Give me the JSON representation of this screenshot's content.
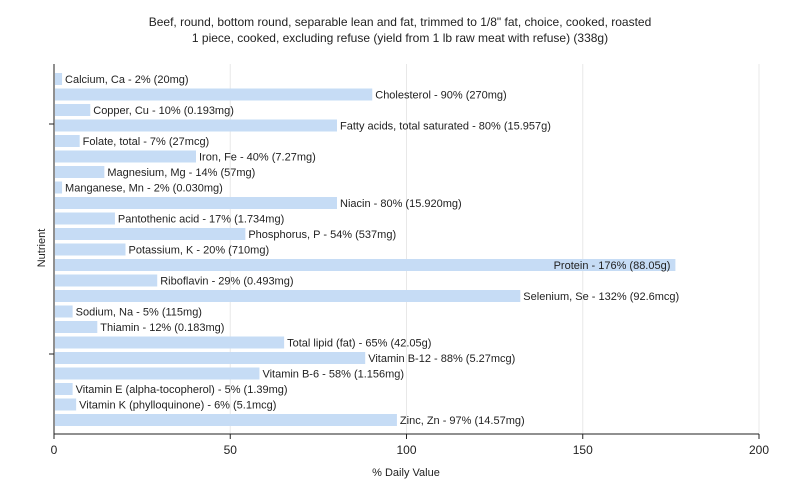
{
  "chart_data": {
    "type": "bar",
    "orientation": "horizontal",
    "title": "Beef, round, bottom round, separable lean and fat, trimmed to 1/8\" fat, choice, cooked, roasted",
    "subtitle": "1 piece, cooked, excluding refuse (yield from 1 lb raw meat with refuse) (338g)",
    "xlabel": "% Daily Value",
    "ylabel": "Nutrient",
    "xlim": [
      0,
      200
    ],
    "xticks": [
      0,
      50,
      100,
      150,
      200
    ],
    "bar_color": "#c6dcf5",
    "grid": "vertical",
    "categories": [
      "Calcium, Ca",
      "Cholesterol",
      "Copper, Cu",
      "Fatty acids, total saturated",
      "Folate, total",
      "Iron, Fe",
      "Magnesium, Mg",
      "Manganese, Mn",
      "Niacin",
      "Pantothenic acid",
      "Phosphorus, P",
      "Potassium, K",
      "Protein",
      "Riboflavin",
      "Selenium, Se",
      "Sodium, Na",
      "Thiamin",
      "Total lipid (fat)",
      "Vitamin B-12",
      "Vitamin B-6",
      "Vitamin E (alpha-tocopherol)",
      "Vitamin K (phylloquinone)",
      "Zinc, Zn"
    ],
    "values": [
      2,
      90,
      10,
      80,
      7,
      40,
      14,
      2,
      80,
      17,
      54,
      20,
      176,
      29,
      132,
      5,
      12,
      65,
      88,
      58,
      5,
      6,
      97
    ],
    "labels": [
      "Calcium, Ca - 2% (20mg)",
      "Cholesterol - 90% (270mg)",
      "Copper, Cu - 10% (0.193mg)",
      "Fatty acids, total saturated - 80% (15.957g)",
      "Folate, total - 7% (27mcg)",
      "Iron, Fe - 40% (7.27mg)",
      "Magnesium, Mg - 14% (57mg)",
      "Manganese, Mn - 2% (0.030mg)",
      "Niacin - 80% (15.920mg)",
      "Pantothenic acid - 17% (1.734mg)",
      "Phosphorus, P - 54% (537mg)",
      "Potassium, K - 20% (710mg)",
      "Protein - 176% (88.05g)",
      "Riboflavin - 29% (0.493mg)",
      "Selenium, Se - 132% (92.6mcg)",
      "Sodium, Na - 5% (115mg)",
      "Thiamin - 12% (0.183mg)",
      "Total lipid (fat) - 65% (42.05g)",
      "Vitamin B-12 - 88% (5.27mcg)",
      "Vitamin B-6 - 58% (1.156mg)",
      "Vitamin E (alpha-tocopherol) - 5% (1.39mg)",
      "Vitamin K (phylloquinone) - 6% (5.1mcg)",
      "Zinc, Zn - 97% (14.57mg)"
    ]
  }
}
